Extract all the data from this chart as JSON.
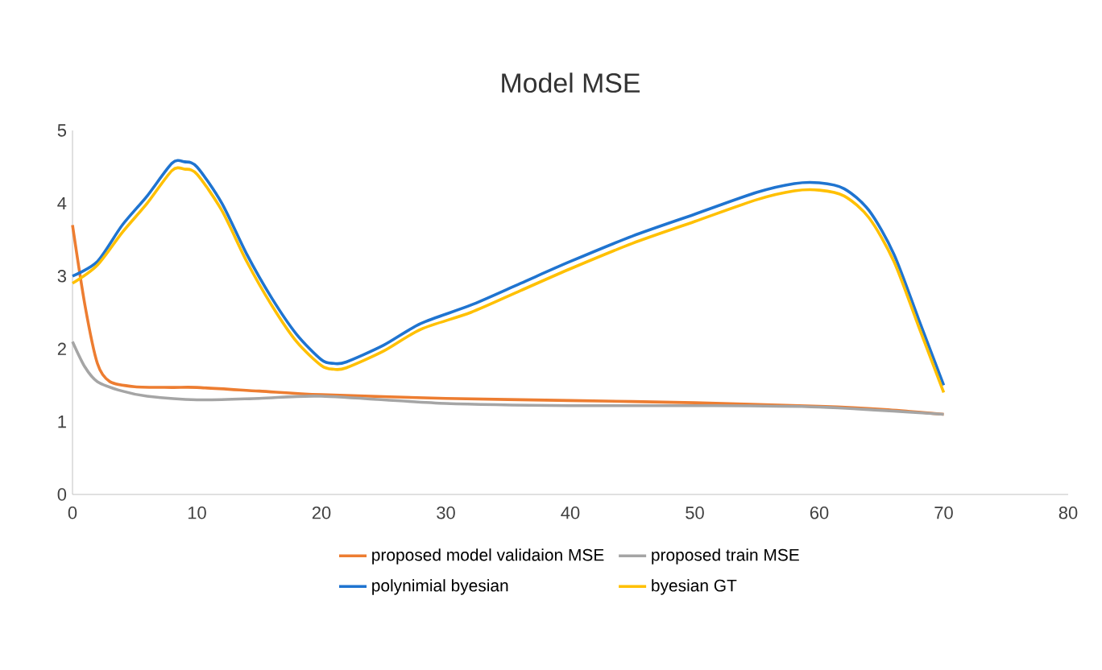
{
  "chart_data": {
    "type": "line",
    "title": "Model MSE",
    "xlim": [
      0,
      80
    ],
    "xticks": [
      0,
      10,
      20,
      30,
      40,
      50,
      60,
      70,
      80
    ],
    "ylim": [
      0,
      5
    ],
    "yticks": [
      0,
      1,
      2,
      3,
      4,
      5
    ],
    "grid": false,
    "legend": "bottom",
    "marker": "none",
    "line_style": "solid",
    "series": [
      {
        "name": "proposed model validaion MSE",
        "color": "#ed7d31",
        "x": [
          0,
          1,
          2,
          3,
          5,
          8,
          10,
          15,
          20,
          30,
          40,
          50,
          60,
          65,
          70
        ],
        "values": [
          3.7,
          2.6,
          1.8,
          1.55,
          1.48,
          1.47,
          1.47,
          1.42,
          1.37,
          1.32,
          1.29,
          1.26,
          1.21,
          1.17,
          1.1
        ]
      },
      {
        "name": "proposed train MSE",
        "color": "#a5a5a5",
        "x": [
          0,
          1,
          2,
          4,
          6,
          10,
          15,
          20,
          30,
          40,
          50,
          60,
          70
        ],
        "values": [
          2.1,
          1.75,
          1.55,
          1.42,
          1.35,
          1.3,
          1.32,
          1.35,
          1.25,
          1.22,
          1.22,
          1.2,
          1.1
        ]
      },
      {
        "name": "polynimial byesian",
        "color": "#1f74d0",
        "x": [
          0,
          2,
          4,
          6,
          8,
          9,
          10,
          12,
          14,
          16,
          18,
          20,
          21,
          22,
          25,
          28,
          32,
          36,
          40,
          45,
          50,
          55,
          58,
          60,
          62,
          64,
          66,
          68,
          70
        ],
        "values": [
          3.0,
          3.2,
          3.7,
          4.1,
          4.55,
          4.57,
          4.5,
          4.0,
          3.3,
          2.7,
          2.2,
          1.85,
          1.8,
          1.82,
          2.05,
          2.35,
          2.6,
          2.9,
          3.2,
          3.55,
          3.85,
          4.15,
          4.27,
          4.28,
          4.2,
          3.9,
          3.3,
          2.4,
          1.5
        ]
      },
      {
        "name": "byesian GT",
        "color": "#ffc000",
        "x": [
          0,
          2,
          4,
          6,
          8,
          9,
          10,
          12,
          14,
          16,
          18,
          20,
          21,
          22,
          25,
          28,
          32,
          36,
          40,
          45,
          50,
          55,
          58,
          60,
          62,
          64,
          66,
          68,
          70
        ],
        "values": [
          2.9,
          3.15,
          3.6,
          4.0,
          4.45,
          4.47,
          4.4,
          3.9,
          3.2,
          2.6,
          2.1,
          1.77,
          1.72,
          1.74,
          1.97,
          2.27,
          2.5,
          2.8,
          3.1,
          3.45,
          3.75,
          4.05,
          4.17,
          4.18,
          4.1,
          3.8,
          3.2,
          2.3,
          1.4
        ]
      }
    ]
  }
}
